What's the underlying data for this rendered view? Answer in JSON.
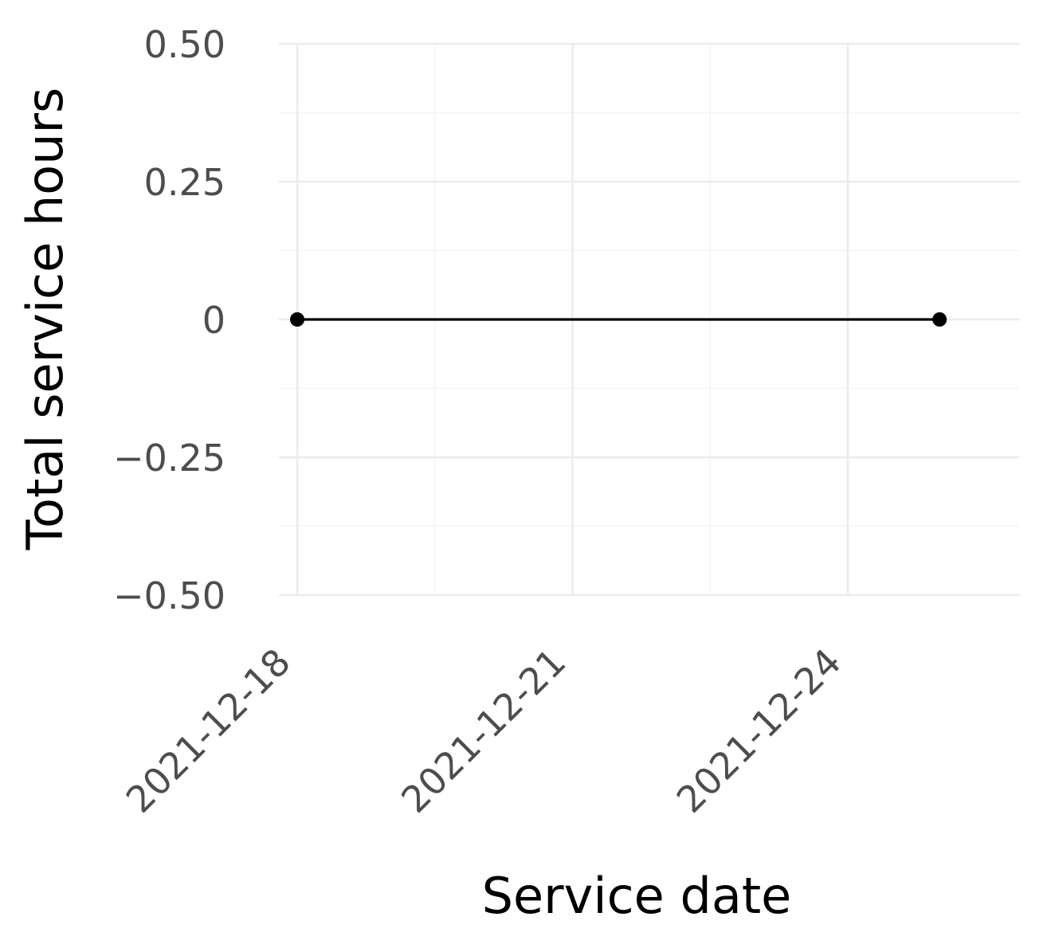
{
  "chart_data": {
    "type": "line",
    "title": "",
    "xlabel": "Service date",
    "ylabel": "Total service hours",
    "x_ticks": [
      "2021-12-18",
      "2021-12-21",
      "2021-12-24"
    ],
    "x_range": [
      "2021-12-17 19:12",
      "2021-12-25 21:00"
    ],
    "y_ticks": [
      {
        "value": -0.5,
        "label": "−0.50"
      },
      {
        "value": -0.25,
        "label": "−0.25"
      },
      {
        "value": 0,
        "label": "0"
      },
      {
        "value": 0.25,
        "label": "0.25"
      },
      {
        "value": 0.5,
        "label": "0.50"
      }
    ],
    "ylim": [
      -0.5,
      0.5
    ],
    "grid": true,
    "legend": "none",
    "series": [
      {
        "color": "#000000",
        "points": [
          {
            "x": "2021-12-18",
            "y": 0
          },
          {
            "x": "2021-12-25",
            "y": 0
          }
        ]
      }
    ],
    "colors": {
      "major_grid": "#ebebeb",
      "minor_grid": "#f5f5f5",
      "tick_text": "#4d4d4d",
      "axis_title": "#000000",
      "line": "#000000"
    }
  }
}
